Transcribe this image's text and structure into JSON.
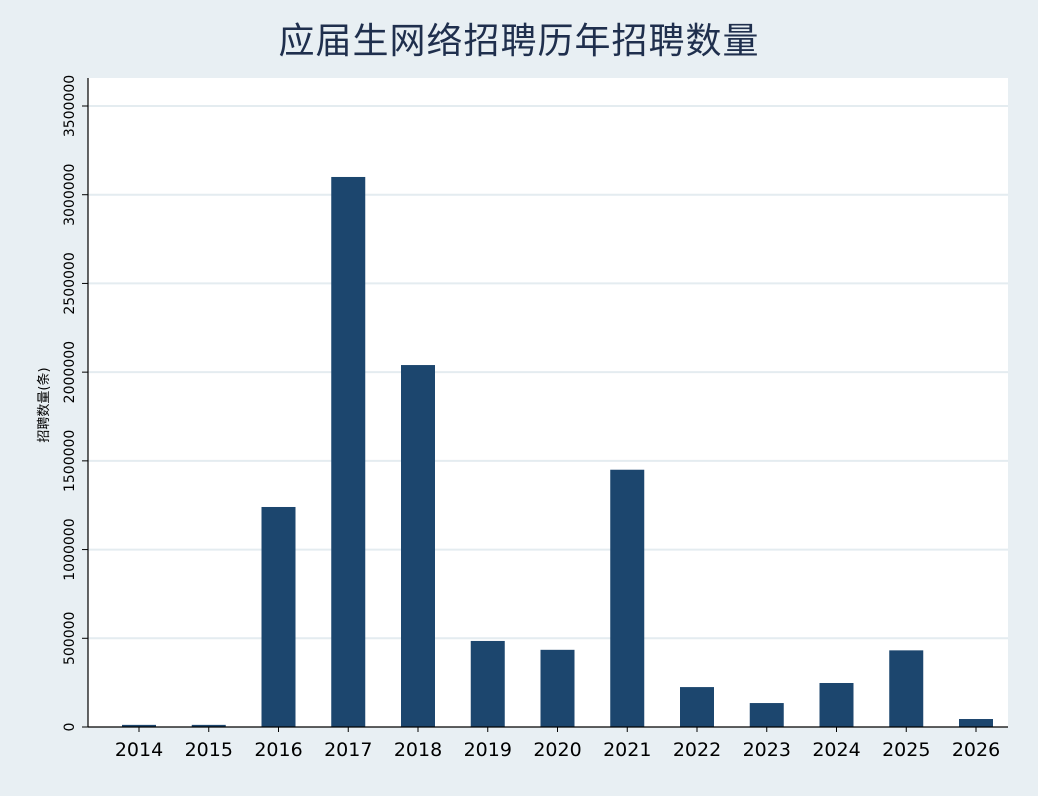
{
  "chart_data": {
    "type": "bar",
    "title": "应届生网络招聘历年招聘数量",
    "xlabel": "",
    "ylabel": "招聘数量(条)",
    "categories": [
      "2014",
      "2015",
      "2016",
      "2017",
      "2018",
      "2019",
      "2020",
      "2021",
      "2022",
      "2023",
      "2024",
      "2025",
      "2026"
    ],
    "values": [
      12000,
      12000,
      1240000,
      3100000,
      2040000,
      485000,
      435000,
      1450000,
      225000,
      135000,
      248000,
      432000,
      45000
    ],
    "ylim": [
      0,
      3500000
    ],
    "yticks": [
      0,
      500000,
      1000000,
      1500000,
      2000000,
      2500000,
      3000000,
      3500000
    ],
    "ytick_labels": [
      "0",
      "500000",
      "1000000",
      "1500000",
      "2000000",
      "2500000",
      "3000000",
      "3500000"
    ],
    "grid": true,
    "legend": "none",
    "colors": {
      "bar": "#1c466e",
      "grid": "#e4ecf0",
      "plot_bg": "#ffffff",
      "outer_bg": "#e8eff3",
      "text": "#000000",
      "title": "#1f2f4d"
    }
  }
}
